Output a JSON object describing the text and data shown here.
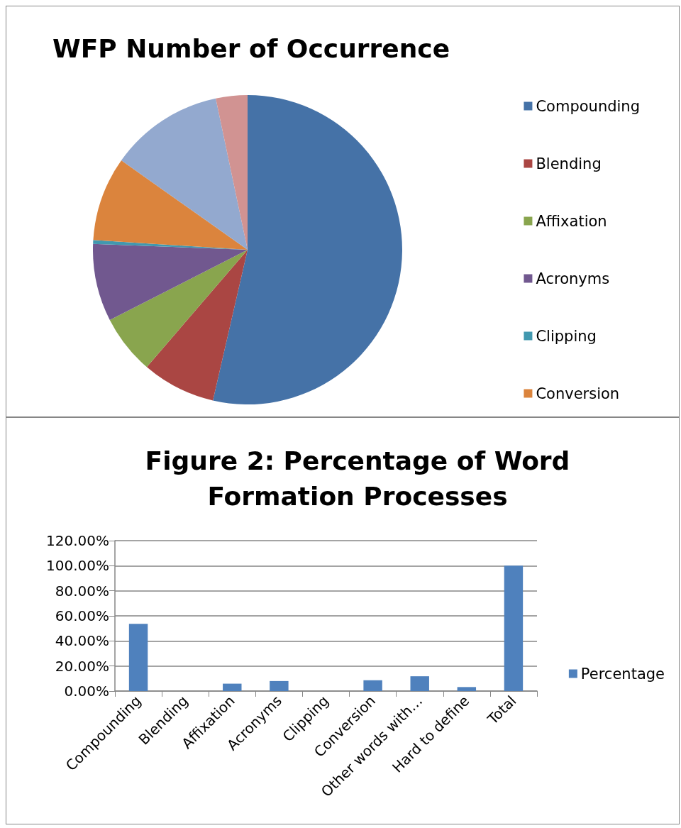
{
  "chart_data": [
    {
      "type": "pie",
      "title": "WFP Number of Occurrence",
      "categories": [
        "Compounding",
        "Blending",
        "Affixation",
        "Acronyms",
        "Clipping",
        "Conversion",
        null,
        null
      ],
      "values": [
        53.6,
        7.7,
        6.2,
        8.1,
        0.4,
        8.8,
        11.9,
        3.3
      ],
      "colors": [
        "#4572a7",
        "#aa4643",
        "#89a54e",
        "#71588f",
        "#4198af",
        "#db843d",
        "#93a9cf",
        "#d19392"
      ],
      "legend": "right"
    },
    {
      "type": "bar",
      "title": "Figure 2: Percentage of Word Formation Processes",
      "categories": [
        "Compounding",
        "Blending",
        "Affixation",
        "Acronyms",
        "Clipping",
        "Conversion",
        "Other words with…",
        "Hard to define",
        "Total"
      ],
      "series": [
        {
          "name": "Percentage",
          "color": "#4f81bd",
          "values": [
            53.6,
            0,
            5.9,
            8.0,
            0,
            8.6,
            11.8,
            3.2,
            100
          ]
        }
      ],
      "ylim": [
        0,
        120
      ],
      "yticks": [
        {
          "value": 0,
          "label": "0.00%"
        },
        {
          "value": 20,
          "label": "20.00%"
        },
        {
          "value": 40,
          "label": "40.00%"
        },
        {
          "value": 60,
          "label": "60.00%"
        },
        {
          "value": 80,
          "label": "80.00%"
        },
        {
          "value": 100,
          "label": "100.00%"
        },
        {
          "value": 120,
          "label": "120.00%"
        }
      ],
      "grid": "y",
      "legend": "right"
    }
  ]
}
